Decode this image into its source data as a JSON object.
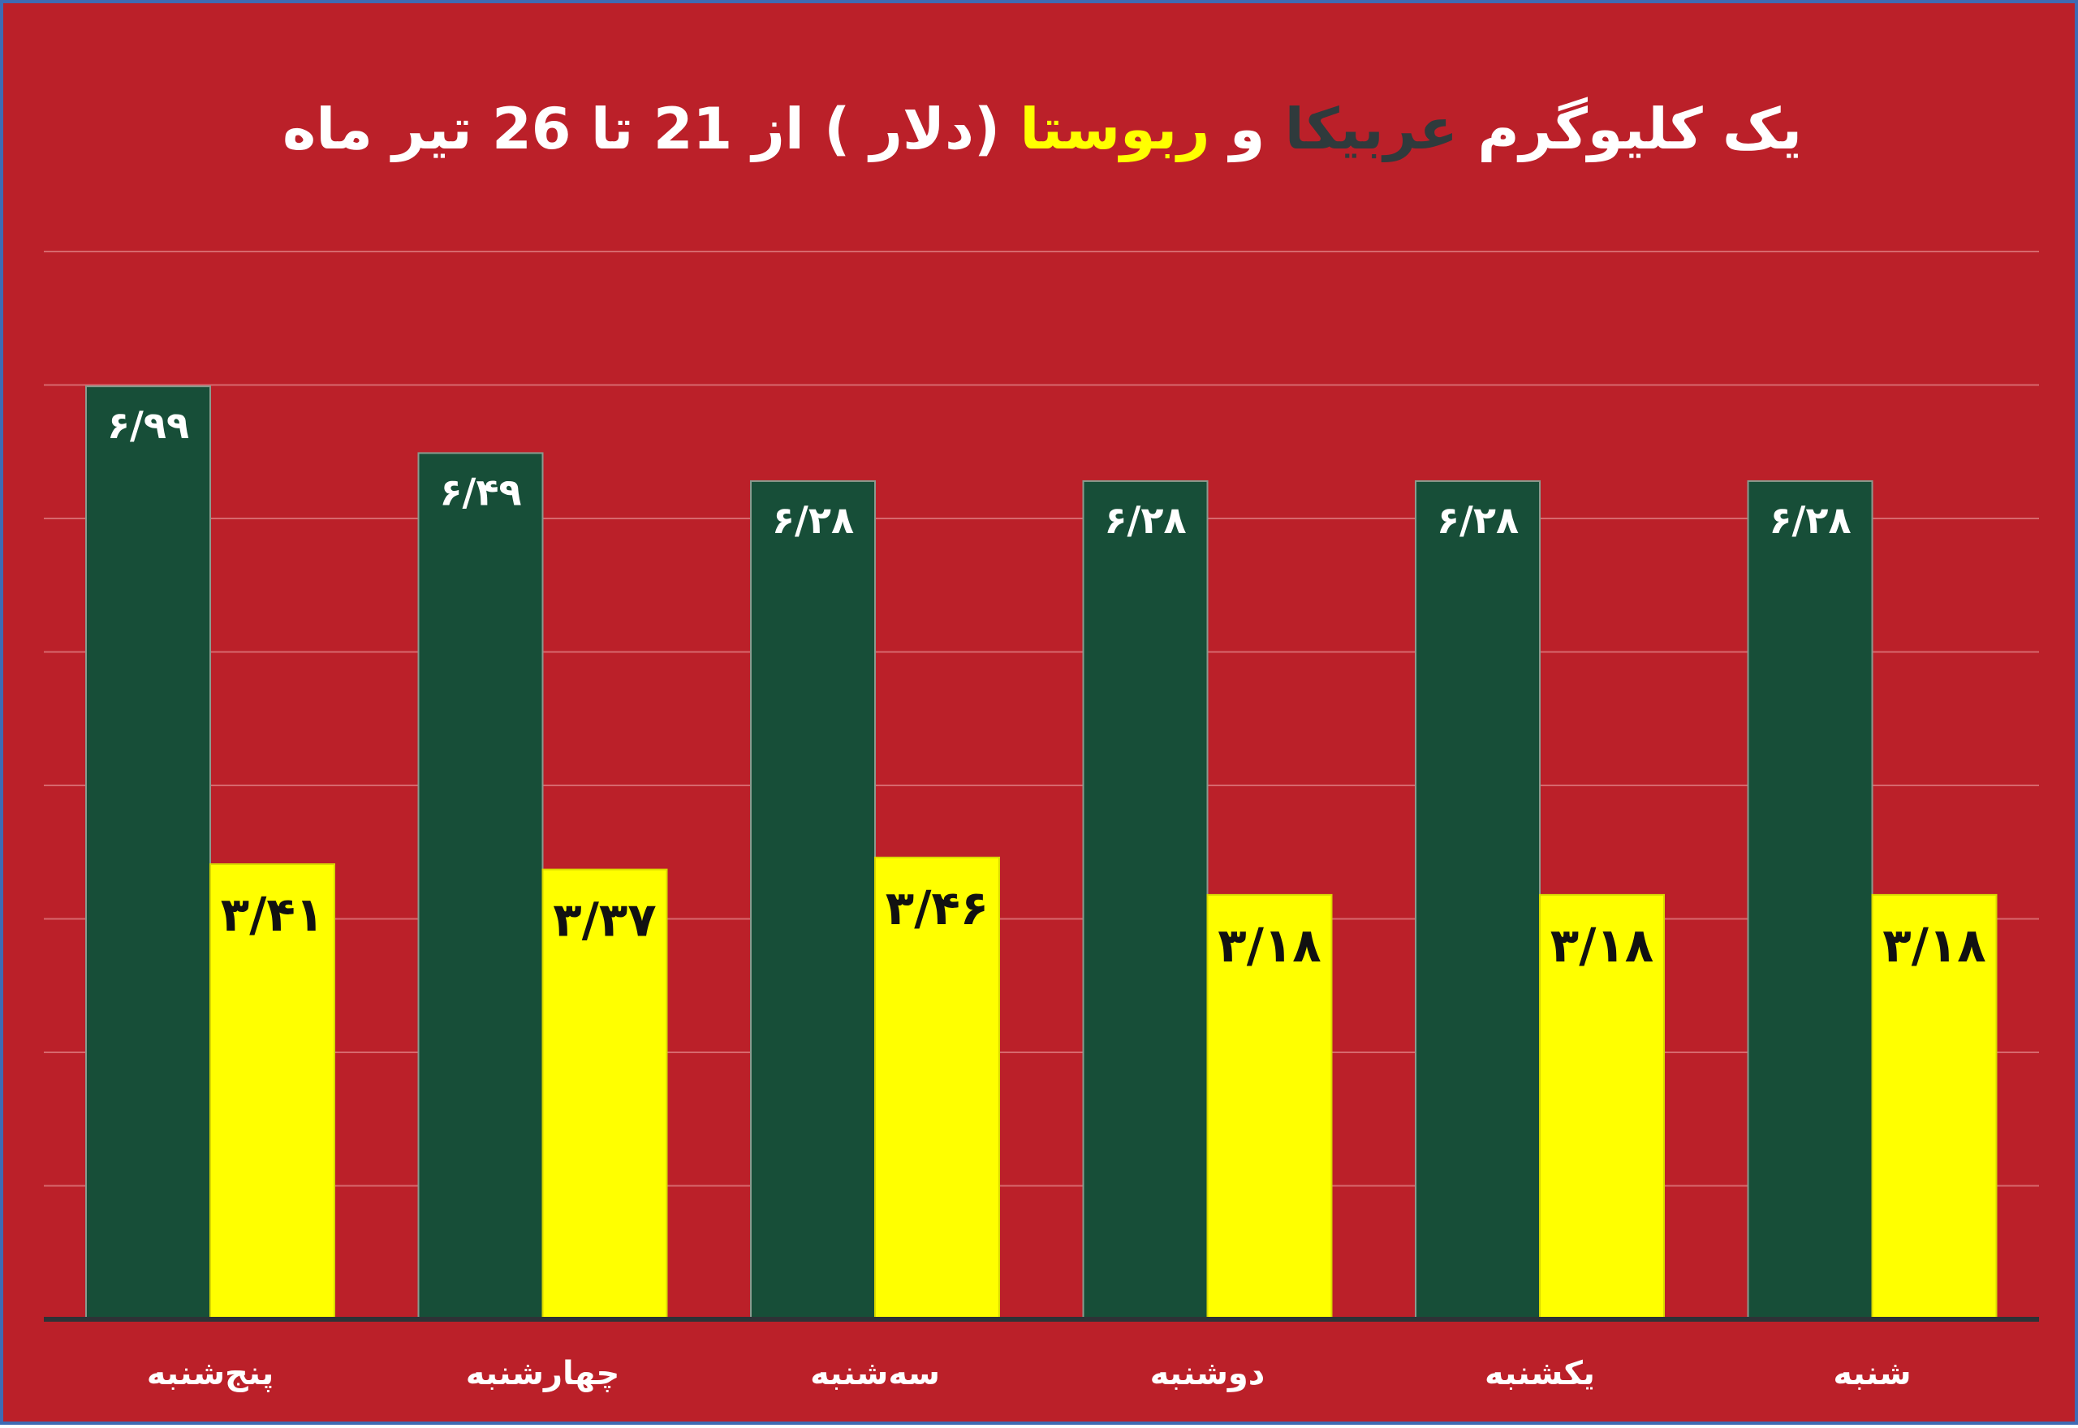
{
  "title": {
    "part1": "یک کلیوگرم",
    "arabica": "عربیکا",
    "and": "و",
    "robusta": "ربوستا",
    "part2": "(دلار ) از 21 تا 26 تیر ماه"
  },
  "colors": {
    "background": "#bb2029",
    "border": "#3f6bb3",
    "arabica": "#174e38",
    "robusta": "#ffff00",
    "title_dark": "#2f3a3c",
    "gridline": "#d7686d",
    "axis": "#2e3236"
  },
  "chart_data": {
    "type": "bar",
    "categories": [
      "پنج‌شنبه",
      "چهارشنبه",
      "سه‌شنبه",
      "دوشنبه",
      "یکشنبه",
      "شنبه"
    ],
    "series": [
      {
        "name": "عربیکا",
        "values": [
          6.99,
          6.49,
          6.28,
          6.28,
          6.28,
          6.28
        ],
        "labels": [
          "۶/۹۹",
          "۶/۴۹",
          "۶/۲۸",
          "۶/۲۸",
          "۶/۲۸",
          "۶/۲۸"
        ],
        "color": "#174e38"
      },
      {
        "name": "ربوستا",
        "values": [
          3.41,
          3.37,
          3.46,
          3.18,
          3.18,
          3.18
        ],
        "labels": [
          "۳/۴۱",
          "۳/۳۷",
          "۳/۴۶",
          "۳/۱۸",
          "۳/۱۸",
          "۳/۱۸"
        ],
        "color": "#ffff00"
      }
    ],
    "ylim": [
      0,
      8
    ],
    "yticks": [
      1,
      2,
      3,
      4,
      5,
      6,
      7,
      8
    ],
    "grid": true,
    "legend": "none"
  }
}
